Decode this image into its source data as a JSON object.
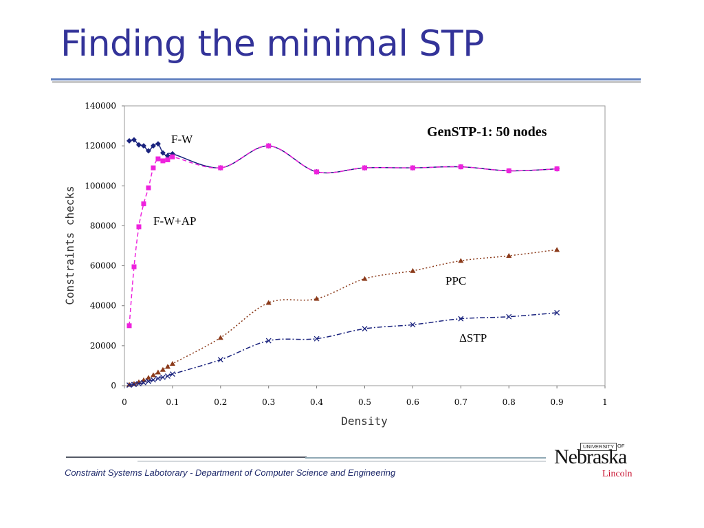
{
  "slide": {
    "title": "Finding the minimal STP",
    "footer": "Constraint Systems Labotorary - Department of Computer Science and Engineering"
  },
  "logo": {
    "university": "UNIVERSITY",
    "of": "OF",
    "name": "Nebraska",
    "campus": "Lincoln"
  },
  "chart_data": {
    "type": "line",
    "title": "GenSTP-1: 50 nodes",
    "xlabel": "Density",
    "ylabel": "Constraints checks",
    "xlim": [
      0,
      1
    ],
    "ylim": [
      0,
      140000
    ],
    "x_ticks": [
      0,
      0.1,
      0.2,
      0.3,
      0.4,
      0.5,
      0.6,
      0.7,
      0.8,
      0.9,
      1
    ],
    "x_tick_labels": [
      "0",
      "0.1",
      "0.2",
      "0.3",
      "0.4",
      "0.5",
      "0.6",
      "0.7",
      "0.8",
      "0.9",
      "1"
    ],
    "y_ticks": [
      0,
      20000,
      40000,
      60000,
      80000,
      100000,
      120000,
      140000
    ],
    "y_tick_labels": [
      "0",
      "20000",
      "40000",
      "60000",
      "80000",
      "100000",
      "120000",
      "140000"
    ],
    "grid": false,
    "legend": "inline labels",
    "series": [
      {
        "name": "F-W",
        "marker": "diamond",
        "color": "#1a237e",
        "line": "solid",
        "points": [
          [
            0.01,
            122500
          ],
          [
            0.02,
            123000
          ],
          [
            0.03,
            120500
          ],
          [
            0.04,
            120000
          ],
          [
            0.05,
            117500
          ],
          [
            0.06,
            120000
          ],
          [
            0.07,
            121000
          ],
          [
            0.08,
            116500
          ],
          [
            0.09,
            115000
          ],
          [
            0.1,
            116000
          ],
          [
            0.2,
            109000
          ],
          [
            0.3,
            120000
          ],
          [
            0.4,
            107000
          ],
          [
            0.5,
            109000
          ],
          [
            0.6,
            109000
          ],
          [
            0.7,
            109500
          ],
          [
            0.8,
            107500
          ],
          [
            0.9,
            108500
          ]
        ]
      },
      {
        "name": "F-W+AP",
        "marker": "square",
        "color": "#ee22dd",
        "line": "dashed",
        "points": [
          [
            0.01,
            30000
          ],
          [
            0.02,
            59500
          ],
          [
            0.03,
            79500
          ],
          [
            0.04,
            91000
          ],
          [
            0.05,
            99000
          ],
          [
            0.06,
            109000
          ],
          [
            0.07,
            113500
          ],
          [
            0.08,
            112500
          ],
          [
            0.09,
            113000
          ],
          [
            0.1,
            114500
          ],
          [
            0.2,
            109000
          ],
          [
            0.3,
            120000
          ],
          [
            0.4,
            107000
          ],
          [
            0.5,
            109000
          ],
          [
            0.6,
            109000
          ],
          [
            0.7,
            109500
          ],
          [
            0.8,
            107500
          ],
          [
            0.9,
            108500
          ]
        ]
      },
      {
        "name": "PPC",
        "marker": "triangle",
        "color": "#8b3a1a",
        "line": "dotted",
        "points": [
          [
            0.01,
            500
          ],
          [
            0.02,
            1000
          ],
          [
            0.03,
            1800
          ],
          [
            0.04,
            2800
          ],
          [
            0.05,
            4000
          ],
          [
            0.06,
            5300
          ],
          [
            0.07,
            6700
          ],
          [
            0.08,
            8000
          ],
          [
            0.09,
            9500
          ],
          [
            0.1,
            11000
          ],
          [
            0.2,
            24000
          ],
          [
            0.3,
            41500
          ],
          [
            0.4,
            43500
          ],
          [
            0.5,
            53500
          ],
          [
            0.6,
            57500
          ],
          [
            0.7,
            62500
          ],
          [
            0.8,
            65000
          ],
          [
            0.9,
            68000
          ]
        ]
      },
      {
        "name": "ΔSTP",
        "marker": "x",
        "color": "#1a237e",
        "line": "dashdot",
        "points": [
          [
            0.01,
            300
          ],
          [
            0.02,
            600
          ],
          [
            0.03,
            1000
          ],
          [
            0.04,
            1500
          ],
          [
            0.05,
            2200
          ],
          [
            0.06,
            2900
          ],
          [
            0.07,
            3600
          ],
          [
            0.08,
            4200
          ],
          [
            0.09,
            4800
          ],
          [
            0.1,
            5800
          ],
          [
            0.2,
            13000
          ],
          [
            0.3,
            22500
          ],
          [
            0.4,
            23500
          ],
          [
            0.5,
            28500
          ],
          [
            0.6,
            30500
          ],
          [
            0.7,
            33500
          ],
          [
            0.8,
            34500
          ],
          [
            0.9,
            36500
          ]
        ]
      }
    ],
    "annotations": [
      "F-W",
      "F-W+AP",
      "PPC",
      "ΔSTP"
    ]
  }
}
